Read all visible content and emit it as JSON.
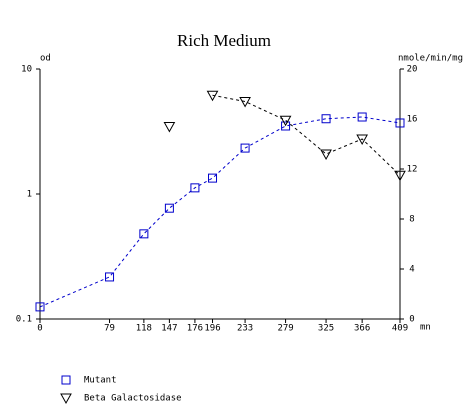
{
  "chart_data": {
    "type": "line",
    "title": "Rich Medium",
    "y_label": "od",
    "y2_label": "nmole/min/mg",
    "x_label": "mn",
    "x": [
      0,
      79,
      118,
      147,
      176,
      196,
      233,
      279,
      325,
      366,
      409
    ],
    "xlim": [
      0,
      409
    ],
    "xticks": [
      0,
      79,
      118,
      147,
      176,
      196,
      233,
      279,
      325,
      366,
      409
    ],
    "ylim": [
      0.1,
      10
    ],
    "yticks": [
      0.1,
      1,
      10
    ],
    "yscale": "log",
    "y2lim": [
      0,
      20
    ],
    "y2ticks": [
      0,
      4,
      8,
      12,
      16,
      20
    ],
    "series": [
      {
        "name": "Mutant",
        "color": "#0000cc",
        "marker": "square",
        "values": [
          0.125,
          0.217,
          0.48,
          0.77,
          1.12,
          1.34,
          2.33,
          3.5,
          4.0,
          4.13,
          3.7
        ]
      },
      {
        "name": "Beta Galactosidase",
        "color": "#000000",
        "marker": "triangle",
        "axis": "y2",
        "values": [
          null,
          null,
          null,
          15.4,
          null,
          17.9,
          17.4,
          15.9,
          13.2,
          14.4,
          11.5
        ]
      }
    ]
  }
}
